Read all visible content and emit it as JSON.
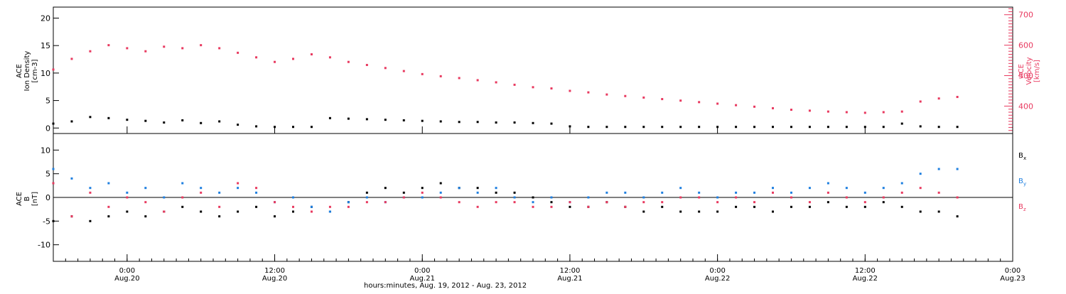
{
  "footer": {
    "xaxis_title": "hours:minutes, Aug. 19, 2012 - Aug. 23, 2012"
  },
  "colors": {
    "black": "#000000",
    "pink": "#e8395f",
    "blue": "#1e7fe0",
    "axis": "#000000"
  },
  "chart_data": [
    {
      "type": "scatter",
      "panel": "top",
      "left_axis": {
        "label_lines": [
          "ACE",
          "Ion Density",
          "[cm-3]"
        ],
        "ylim": [
          -1,
          22
        ],
        "ticks": [
          0,
          5,
          10,
          15,
          20
        ]
      },
      "right_axis": {
        "label_lines": [
          "ACE",
          "Velocity",
          "[km/s]"
        ],
        "ylim": [
          310,
          725
        ],
        "ticks": [
          400,
          500,
          600,
          700
        ],
        "color": "#e8395f"
      },
      "x_ticks": [
        {
          "line1": "0:00",
          "line2": "Aug.20",
          "hours": 0
        },
        {
          "line1": "12:00",
          "line2": "Aug.20",
          "hours": 12
        },
        {
          "line1": "0:00",
          "line2": "Aug.21",
          "hours": 24
        },
        {
          "line1": "12:00",
          "line2": "Aug.21",
          "hours": 36
        },
        {
          "line1": "0:00",
          "line2": "Aug.22",
          "hours": 48
        },
        {
          "line1": "12:00",
          "line2": "Aug.22",
          "hours": 60
        },
        {
          "line1": "0:00",
          "line2": "Aug.23",
          "hours": 72
        }
      ],
      "xlim_hours": [
        -6,
        72
      ],
      "series": [
        {
          "color": "#e8395f",
          "axis": "right",
          "x_hours": [
            -6,
            -4.5,
            -3,
            -1.5,
            0,
            1.5,
            3,
            4.5,
            6,
            7.5,
            9,
            10.5,
            12,
            13.5,
            15,
            16.5,
            18,
            19.5,
            21,
            22.5,
            24,
            25.5,
            27,
            28.5,
            30,
            31.5,
            33,
            34.5,
            36,
            37.5,
            39,
            40.5,
            42,
            43.5,
            45,
            46.5,
            48,
            49.5,
            51,
            52.5,
            54,
            55.5,
            57,
            58.5,
            60,
            61.5,
            63,
            64.5,
            66,
            67.5
          ],
          "values": [
            520,
            555,
            580,
            600,
            590,
            580,
            595,
            590,
            600,
            590,
            575,
            560,
            545,
            555,
            570,
            560,
            545,
            535,
            525,
            515,
            505,
            498,
            492,
            485,
            478,
            470,
            462,
            458,
            450,
            445,
            438,
            433,
            428,
            423,
            418,
            413,
            408,
            403,
            398,
            393,
            388,
            385,
            382,
            380,
            378,
            380,
            382,
            415,
            425,
            430
          ]
        },
        {
          "color": "#000000",
          "axis": "left",
          "x_hours": [
            -6,
            -4.5,
            -3,
            -1.5,
            0,
            1.5,
            3,
            4.5,
            6,
            7.5,
            9,
            10.5,
            12,
            13.5,
            15,
            16.5,
            18,
            19.5,
            21,
            22.5,
            24,
            25.5,
            27,
            28.5,
            30,
            31.5,
            33,
            34.5,
            36,
            37.5,
            39,
            40.5,
            42,
            43.5,
            45,
            46.5,
            48,
            49.5,
            51,
            52.5,
            54,
            55.5,
            57,
            58.5,
            60,
            61.5,
            63,
            64.5,
            66,
            67.5
          ],
          "values": [
            0.8,
            1.2,
            2.0,
            1.8,
            1.5,
            1.3,
            1.0,
            1.4,
            0.9,
            1.2,
            0.6,
            0.3,
            0.2,
            0.2,
            0.2,
            1.8,
            1.7,
            1.6,
            1.5,
            1.4,
            1.3,
            1.2,
            1.1,
            1.1,
            1.0,
            1.0,
            0.9,
            0.8,
            0.3,
            0.2,
            0.2,
            0.2,
            0.2,
            0.2,
            0.2,
            0.2,
            0.2,
            0.2,
            0.2,
            0.2,
            0.2,
            0.2,
            0.2,
            0.2,
            0.2,
            0.2,
            0.8,
            0.3,
            0.2,
            0.2
          ]
        }
      ]
    },
    {
      "type": "scatter",
      "panel": "bottom",
      "left_axis": {
        "label_lines": [
          "ACE",
          "B",
          "[nT]"
        ],
        "ylim": [
          -13.5,
          13.5
        ],
        "ticks": [
          -10,
          -5,
          0,
          5,
          10
        ]
      },
      "legend": [
        {
          "label": "B",
          "sub": "x",
          "color": "#000000"
        },
        {
          "label": "B",
          "sub": "y",
          "color": "#1e7fe0"
        },
        {
          "label": "B",
          "sub": "z",
          "color": "#e8395f"
        }
      ],
      "xlim_hours": [
        -6,
        72
      ],
      "series": [
        {
          "color": "#000000",
          "x_hours": [
            -6,
            -4.5,
            -3,
            -1.5,
            0,
            1.5,
            3,
            4.5,
            6,
            7.5,
            9,
            10.5,
            12,
            13.5,
            15,
            16.5,
            18,
            19.5,
            21,
            22.5,
            24,
            25.5,
            27,
            28.5,
            30,
            31.5,
            33,
            34.5,
            36,
            37.5,
            39,
            40.5,
            42,
            43.5,
            45,
            46.5,
            48,
            49.5,
            51,
            52.5,
            54,
            55.5,
            57,
            58.5,
            60,
            61.5,
            63,
            64.5,
            66,
            67.5
          ],
          "values": [
            -5,
            -4,
            -5,
            -4,
            -3,
            -4,
            -3,
            -2,
            -3,
            -4,
            -3,
            -2,
            -4,
            -3,
            -2,
            -3,
            -1,
            1,
            2,
            1,
            2,
            3,
            2,
            2,
            1,
            1,
            0,
            -1,
            -2,
            -2,
            -1,
            -2,
            -3,
            -2,
            -3,
            -3,
            -3,
            -2,
            -2,
            -3,
            -2,
            -2,
            -1,
            -2,
            -2,
            -1,
            -2,
            -3,
            -3,
            -4
          ]
        },
        {
          "color": "#1e7fe0",
          "x_hours": [
            -6,
            -4.5,
            -3,
            -1.5,
            0,
            1.5,
            3,
            4.5,
            6,
            7.5,
            9,
            10.5,
            12,
            13.5,
            15,
            16.5,
            18,
            19.5,
            21,
            22.5,
            24,
            25.5,
            27,
            28.5,
            30,
            31.5,
            33,
            34.5,
            36,
            37.5,
            39,
            40.5,
            42,
            43.5,
            45,
            46.5,
            48,
            49.5,
            51,
            52.5,
            54,
            55.5,
            57,
            58.5,
            60,
            61.5,
            63,
            64.5,
            66,
            67.5
          ],
          "values": [
            6,
            4,
            2,
            3,
            1,
            2,
            0,
            3,
            2,
            1,
            2,
            1,
            -1,
            0,
            -2,
            -3,
            -1,
            0,
            -1,
            0,
            0,
            1,
            2,
            1,
            2,
            0,
            -1,
            0,
            -1,
            0,
            1,
            1,
            0,
            1,
            2,
            1,
            0,
            1,
            1,
            2,
            1,
            2,
            3,
            2,
            1,
            2,
            3,
            5,
            6,
            6
          ]
        },
        {
          "color": "#e8395f",
          "x_hours": [
            -6,
            -4.5,
            -3,
            -1.5,
            0,
            1.5,
            3,
            4.5,
            6,
            7.5,
            9,
            10.5,
            12,
            13.5,
            15,
            16.5,
            18,
            19.5,
            21,
            22.5,
            24,
            25.5,
            27,
            28.5,
            30,
            31.5,
            33,
            34.5,
            36,
            37.5,
            39,
            40.5,
            42,
            43.5,
            45,
            46.5,
            48,
            49.5,
            51,
            52.5,
            54,
            55.5,
            57,
            58.5,
            60,
            61.5,
            63,
            64.5,
            66,
            67.5
          ],
          "values": [
            3,
            -4,
            1,
            -2,
            0,
            -1,
            -3,
            0,
            1,
            -2,
            3,
            2,
            -1,
            -2,
            -3,
            -2,
            -2,
            -1,
            -1,
            0,
            1,
            0,
            -1,
            -2,
            -1,
            -1,
            -2,
            -2,
            -1,
            -2,
            -1,
            -2,
            -1,
            -1,
            0,
            0,
            -1,
            0,
            -1,
            1,
            0,
            -1,
            1,
            0,
            -1,
            0,
            1,
            2,
            1,
            0
          ]
        }
      ]
    }
  ]
}
